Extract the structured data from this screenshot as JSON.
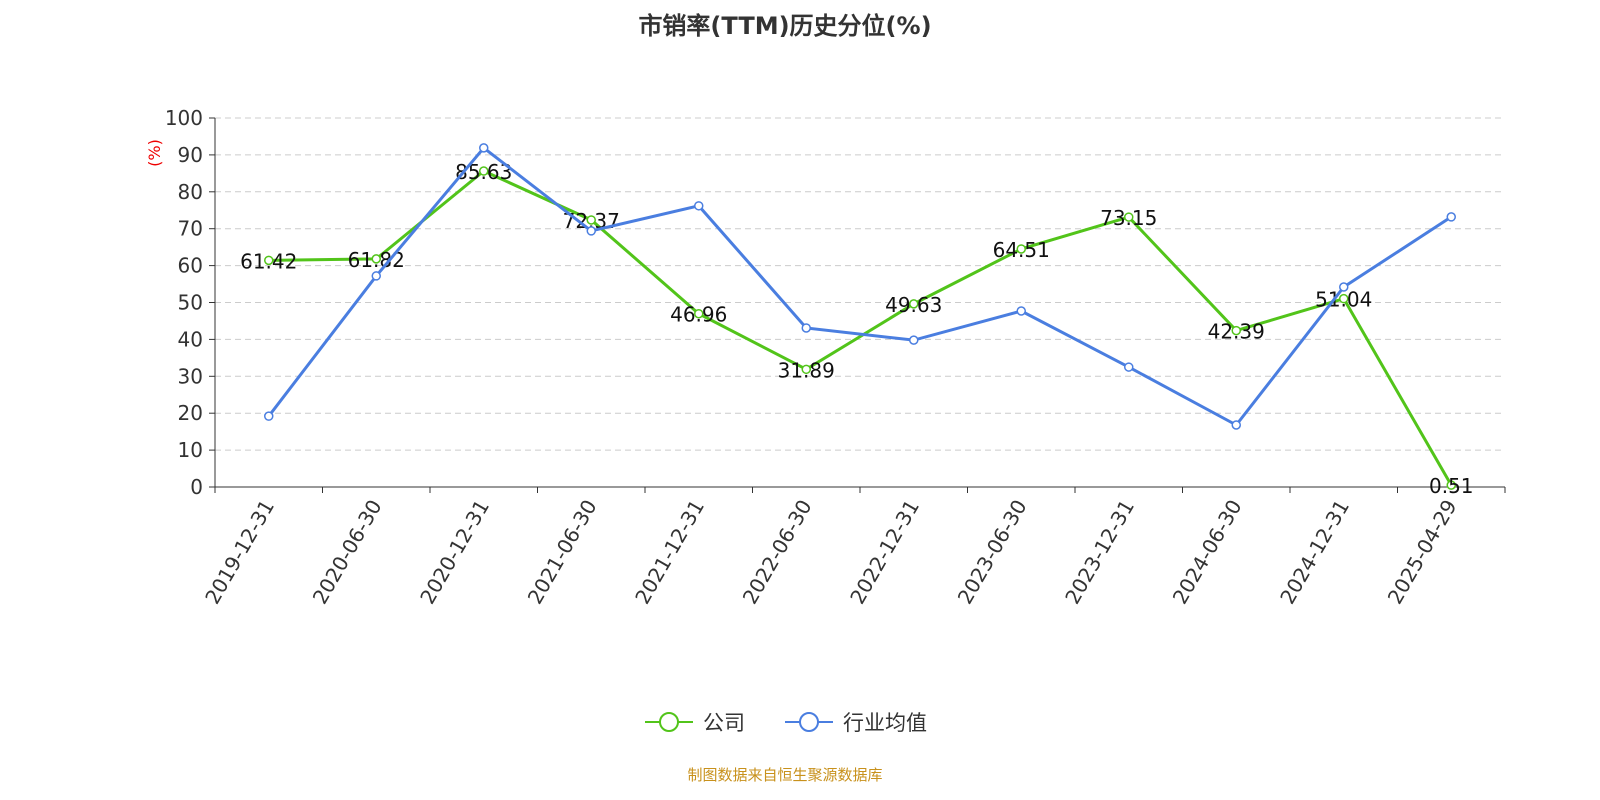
{
  "chart_data": {
    "type": "line",
    "title": "市销率(TTM)历史分位(%)",
    "ylabel": "(%)",
    "ylim": [
      0,
      100
    ],
    "yticks": [
      0,
      10,
      20,
      30,
      40,
      50,
      60,
      70,
      80,
      90,
      100
    ],
    "grid": true,
    "legend_position": "bottom",
    "categories": [
      "2019-12-31",
      "2020-06-30",
      "2020-12-31",
      "2021-06-30",
      "2021-12-31",
      "2022-06-30",
      "2022-12-31",
      "2023-06-30",
      "2023-12-31",
      "2024-06-30",
      "2024-12-31",
      "2025-04-29"
    ],
    "series": [
      {
        "name": "公司",
        "color": "#52c41a",
        "labels": true,
        "values": [
          61.42,
          61.82,
          85.63,
          72.37,
          46.96,
          31.89,
          49.63,
          64.51,
          73.15,
          42.39,
          51.04,
          0.51
        ]
      },
      {
        "name": "行业均值",
        "color": "#4a7ee0",
        "labels": false,
        "values": [
          19.2,
          57.2,
          91.9,
          69.4,
          76.2,
          43.1,
          39.8,
          47.7,
          32.5,
          16.8,
          54.2,
          73.2
        ]
      }
    ]
  },
  "source": "制图数据来自恒生聚源数据库"
}
